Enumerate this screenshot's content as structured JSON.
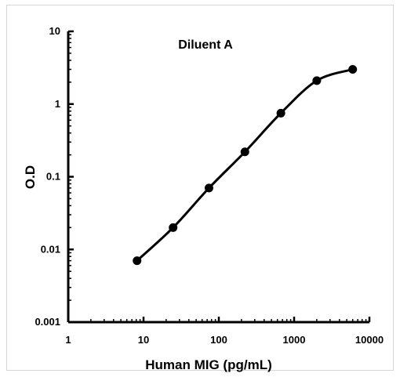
{
  "chart_data": {
    "type": "line",
    "title": "Diluent A",
    "xlabel": "Human MIG (pg/mL)",
    "ylabel": "O.D",
    "x_scale": "log",
    "y_scale": "log",
    "xlim": [
      1,
      10000
    ],
    "ylim": [
      0.001,
      10
    ],
    "x_ticks": [
      "1",
      "10",
      "100",
      "1000",
      "10000"
    ],
    "y_ticks": [
      "10",
      "1",
      "0.1",
      "0.01",
      "0.001"
    ],
    "grid": false,
    "legend": "none",
    "series": [
      {
        "x": [
          8.2,
          24.7,
          74,
          222,
          667,
          2000,
          6000
        ],
        "y": [
          0.007,
          0.02,
          0.07,
          0.22,
          0.75,
          2.1,
          3.0
        ],
        "color": "#000000",
        "smooth": true
      }
    ]
  }
}
